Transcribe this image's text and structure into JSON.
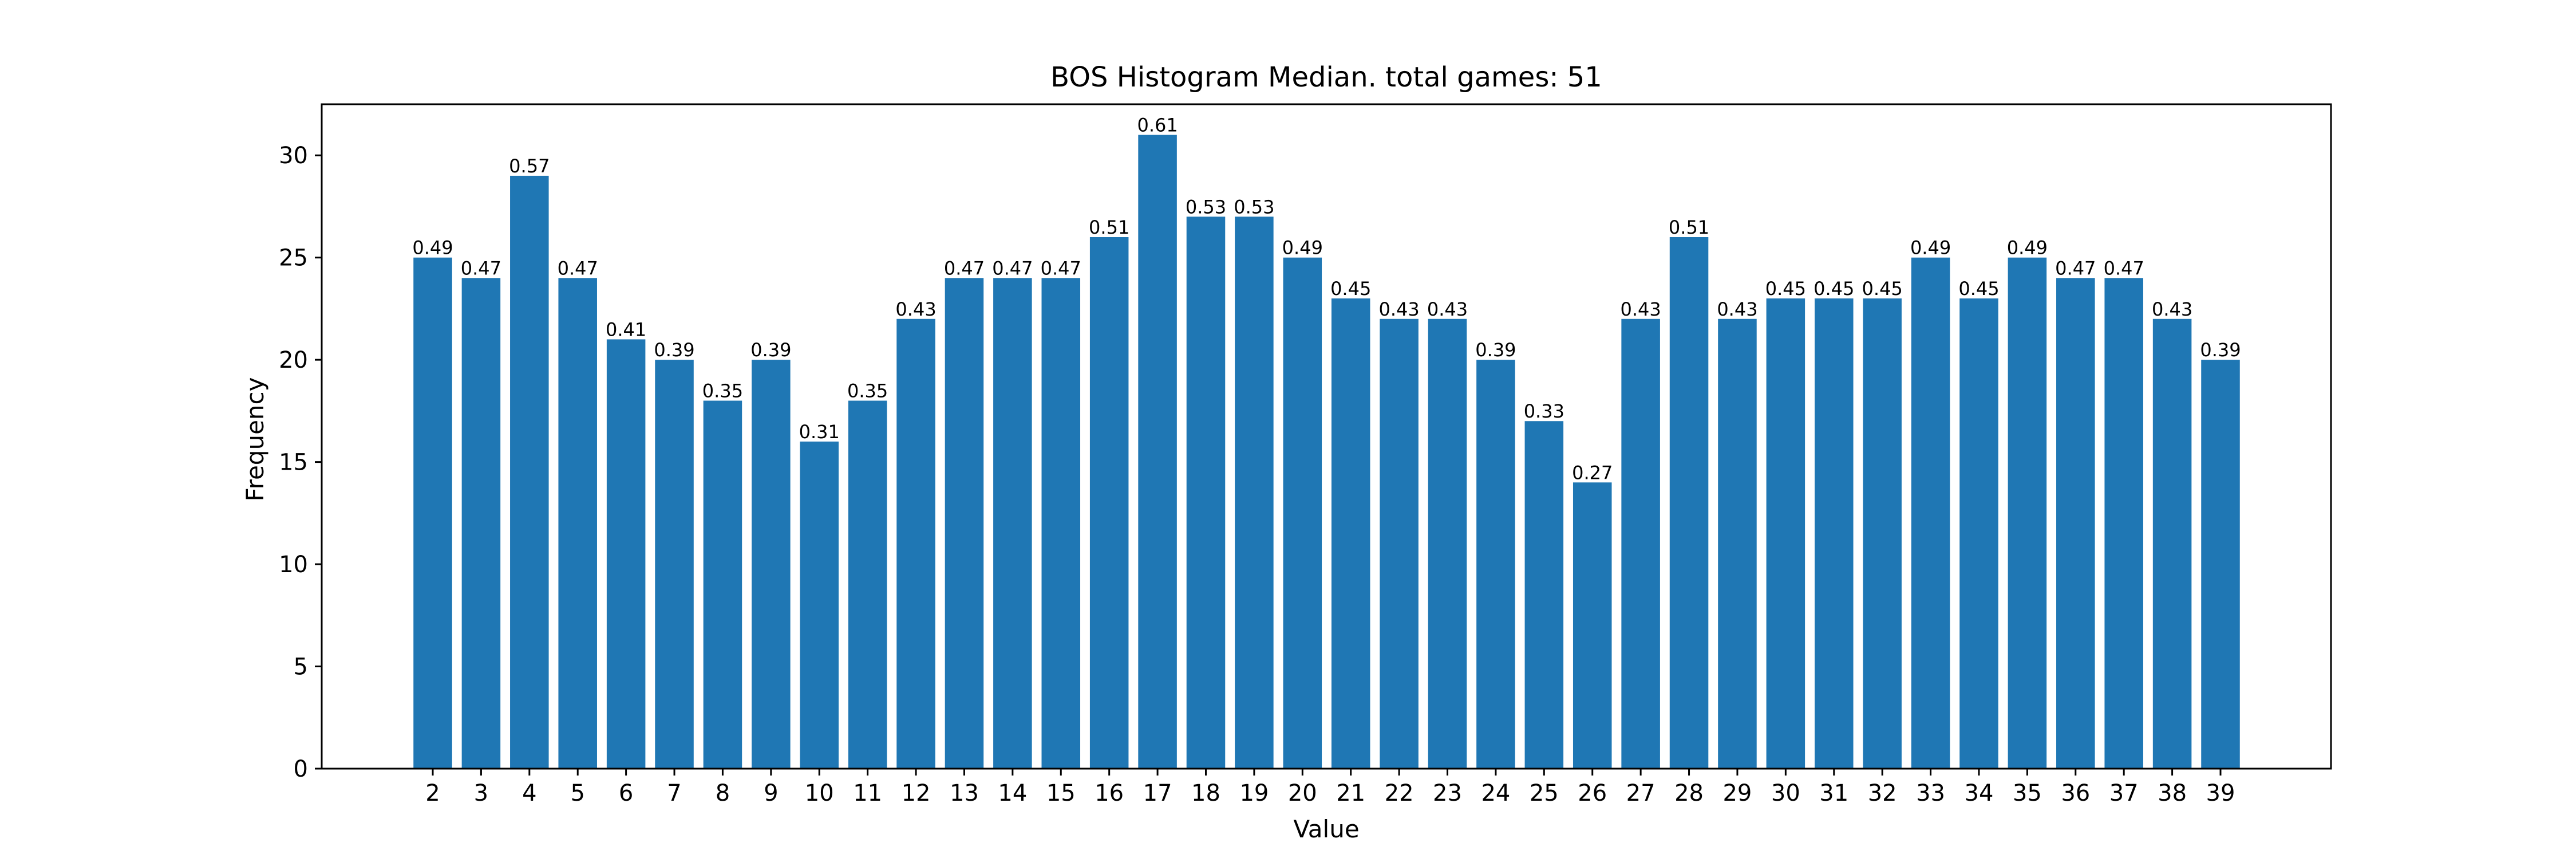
{
  "chart_data": {
    "type": "bar",
    "title": "BOS Histogram Median. total games: 51",
    "xlabel": "Value",
    "ylabel": "Frequency",
    "ylim": [
      0,
      32.5
    ],
    "yticks": [
      0,
      5,
      10,
      15,
      20,
      25,
      30
    ],
    "grid": false,
    "bar_color": "#1f77b4",
    "categories": [
      "2",
      "3",
      "4",
      "5",
      "6",
      "7",
      "8",
      "9",
      "10",
      "11",
      "12",
      "13",
      "14",
      "15",
      "16",
      "17",
      "18",
      "19",
      "20",
      "21",
      "22",
      "23",
      "24",
      "25",
      "26",
      "27",
      "28",
      "29",
      "30",
      "31",
      "32",
      "33",
      "34",
      "35",
      "36",
      "37",
      "38",
      "39"
    ],
    "values": [
      25,
      24,
      29,
      24,
      21,
      20,
      18,
      20,
      16,
      18,
      22,
      24,
      24,
      24,
      26,
      31,
      27,
      27,
      25,
      23,
      22,
      22,
      20,
      17,
      14,
      22,
      26,
      22,
      23,
      23,
      23,
      25,
      23,
      25,
      24,
      24,
      22,
      20
    ],
    "bar_labels": [
      "0.49",
      "0.47",
      "0.57",
      "0.47",
      "0.41",
      "0.39",
      "0.35",
      "0.39",
      "0.31",
      "0.35",
      "0.43",
      "0.47",
      "0.47",
      "0.47",
      "0.51",
      "0.61",
      "0.53",
      "0.53",
      "0.49",
      "0.45",
      "0.43",
      "0.43",
      "0.39",
      "0.33",
      "0.27",
      "0.43",
      "0.51",
      "0.43",
      "0.45",
      "0.45",
      "0.45",
      "0.49",
      "0.45",
      "0.49",
      "0.47",
      "0.47",
      "0.43",
      "0.39"
    ]
  }
}
